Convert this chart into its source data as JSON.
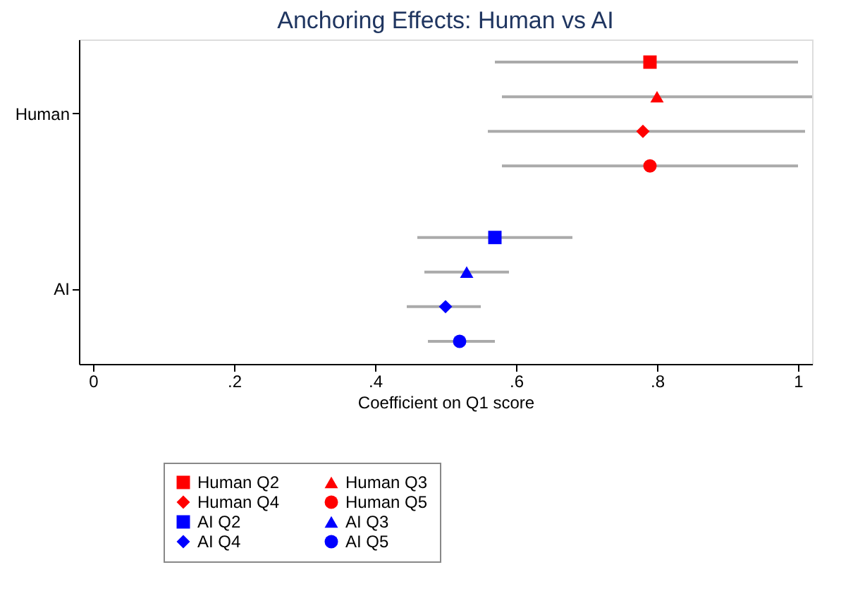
{
  "chart_data": {
    "type": "scatter",
    "orientation": "horizontal",
    "title": "Anchoring Effects: Human vs AI",
    "xlabel": "Coefficient on Q1 score",
    "categories": [
      "Human",
      "AI"
    ],
    "xlim": [
      -0.02,
      1.02
    ],
    "xticks": [
      {
        "value": 0,
        "label": "0"
      },
      {
        "value": 0.2,
        "label": ".2"
      },
      {
        "value": 0.4,
        "label": ".4"
      },
      {
        "value": 0.6,
        "label": ".6"
      },
      {
        "value": 0.8,
        "label": ".8"
      },
      {
        "value": 1,
        "label": "1"
      }
    ],
    "legend": "bottom",
    "grid": false,
    "series": [
      {
        "name": "Human Q2",
        "color": "#ff0000",
        "marker": "square",
        "values": [
          0.79,
          null
        ],
        "errors": [
          [
            0.57,
            1.0
          ],
          null
        ]
      },
      {
        "name": "Human Q3",
        "color": "#ff0000",
        "marker": "triangle",
        "values": [
          0.8,
          null
        ],
        "errors": [
          [
            0.58,
            1.02
          ],
          null
        ]
      },
      {
        "name": "Human Q4",
        "color": "#ff0000",
        "marker": "diamond",
        "values": [
          0.78,
          null
        ],
        "errors": [
          [
            0.56,
            1.01
          ],
          null
        ]
      },
      {
        "name": "Human Q5",
        "color": "#ff0000",
        "marker": "circle",
        "values": [
          0.79,
          null
        ],
        "errors": [
          [
            0.58,
            1.0
          ],
          null
        ]
      },
      {
        "name": "AI Q2",
        "color": "#0000ff",
        "marker": "square",
        "values": [
          null,
          0.57
        ],
        "errors": [
          null,
          [
            0.46,
            0.68
          ]
        ]
      },
      {
        "name": "AI Q3",
        "color": "#0000ff",
        "marker": "triangle",
        "values": [
          null,
          0.53
        ],
        "errors": [
          null,
          [
            0.47,
            0.59
          ]
        ]
      },
      {
        "name": "AI Q4",
        "color": "#0000ff",
        "marker": "diamond",
        "values": [
          null,
          0.5
        ],
        "errors": [
          null,
          [
            0.445,
            0.55
          ]
        ]
      },
      {
        "name": "AI Q5",
        "color": "#0000ff",
        "marker": "circle",
        "values": [
          null,
          0.52
        ],
        "errors": [
          null,
          [
            0.475,
            0.57
          ]
        ]
      }
    ]
  }
}
